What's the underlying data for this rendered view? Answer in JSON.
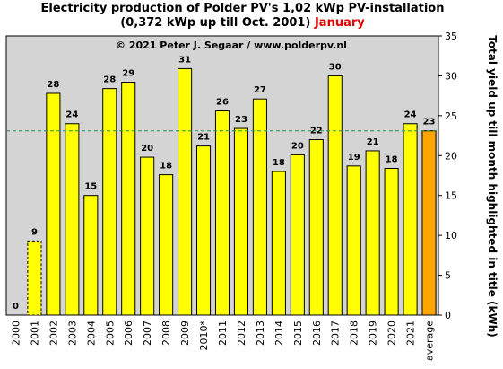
{
  "header": {
    "title_line1": "Electricity production  of Polder PV's 1,02 kWp PV-installation",
    "title_line2_prefix": "(0,372 kWp up till Oct. 2001) ",
    "highlight_month": "January"
  },
  "chart_data": {
    "type": "bar",
    "title": "Electricity production  of Polder PV's 1,02 kWp PV-installation (0,372 kWp up till Oct. 2001) January",
    "annotation": "© 2021 Peter J. Segaar / www.polderpv.nl",
    "ylabel": "Total yield up till month highlighted in title (kWh)",
    "y_axis_side": "right",
    "ylim": [
      0,
      35
    ],
    "yticks": [
      0,
      5,
      10,
      15,
      20,
      25,
      30,
      35
    ],
    "categories": [
      "2000",
      "2001",
      "2002",
      "2003",
      "2004",
      "2005",
      "2006",
      "2007",
      "2008",
      "2009",
      "2010*",
      "2011",
      "2012",
      "2013",
      "2014",
      "2015",
      "2016",
      "2017",
      "2018",
      "2019",
      "2020",
      "2021",
      "average"
    ],
    "values": [
      0,
      9.3,
      27.8,
      24.0,
      15.0,
      28.4,
      29.2,
      19.8,
      17.6,
      30.9,
      21.2,
      25.6,
      23.4,
      27.1,
      18.0,
      20.1,
      22.0,
      30.0,
      18.7,
      20.6,
      18.4,
      24.0,
      23.1
    ],
    "data_labels": [
      "0",
      "9",
      "28",
      "24",
      "15",
      "28",
      "29",
      "20",
      "18",
      "31",
      "21",
      "26",
      "23",
      "27",
      "18",
      "20",
      "22",
      "30",
      "19",
      "21",
      "18",
      "24",
      "23"
    ],
    "reference_line": 23.1,
    "colors": {
      "plot_background": "#d4d4d4",
      "bar": "#ffff00",
      "average_bar": "#ffa500",
      "average_label": "#e00000",
      "reference_line": "#2e8b57"
    },
    "dashed_bar_index": 1,
    "grid": false,
    "legend": "none"
  }
}
